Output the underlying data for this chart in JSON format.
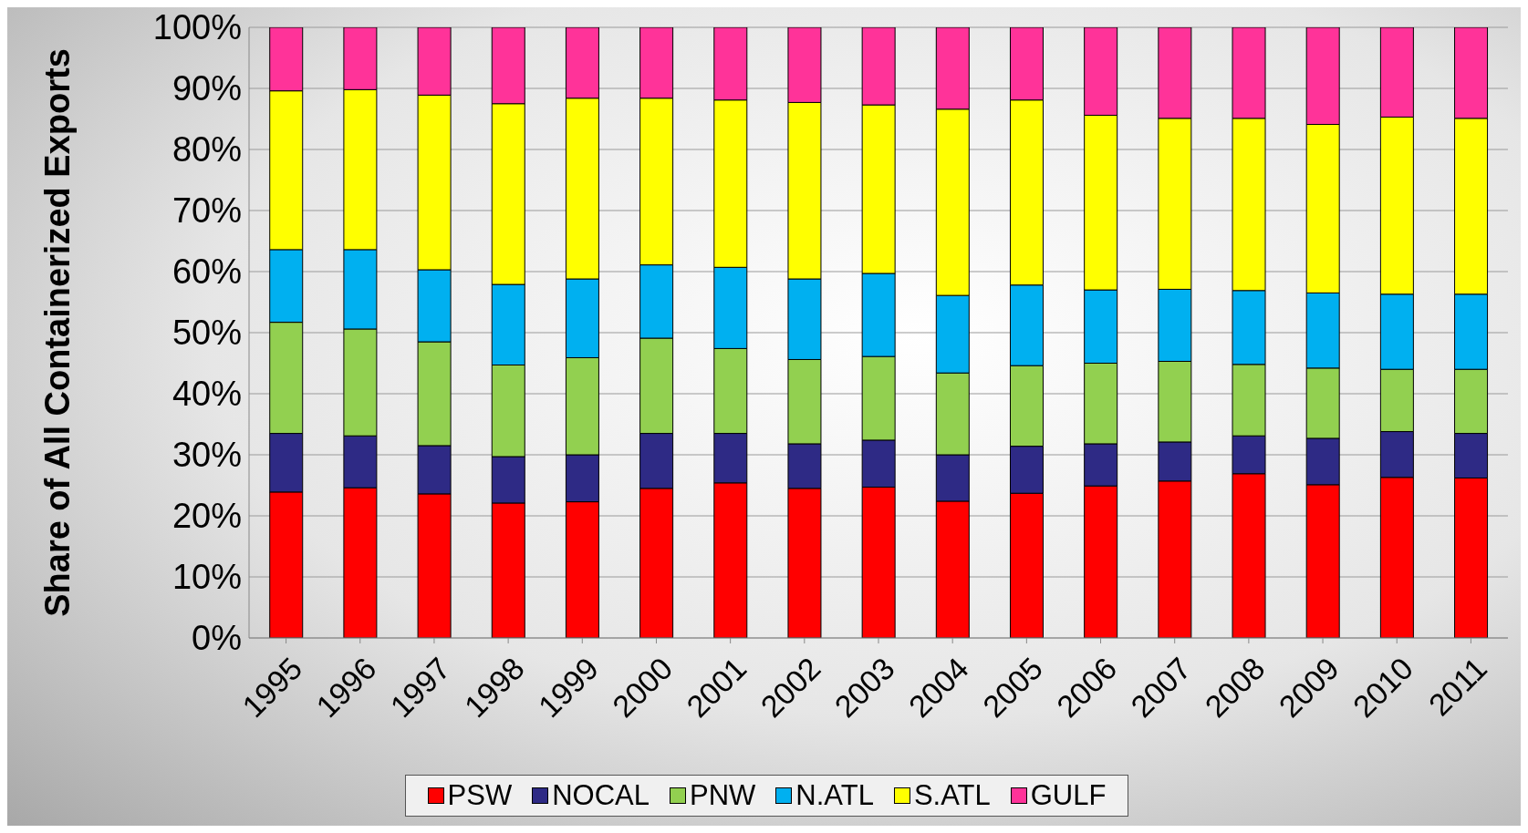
{
  "chart_data": {
    "type": "bar",
    "stacked": true,
    "ylabel": "Share of All Containerized Exports",
    "categories": [
      "1995",
      "1996",
      "1997",
      "1998",
      "1999",
      "2000",
      "2001",
      "2002",
      "2003",
      "2004",
      "2005",
      "2006",
      "2007",
      "2008",
      "2009",
      "2010",
      "2011"
    ],
    "series": [
      {
        "name": "PSW",
        "color": "#ff0000",
        "values": [
          23.9,
          24.6,
          23.6,
          22.1,
          22.3,
          24.5,
          25.4,
          24.5,
          24.7,
          22.4,
          23.7,
          24.9,
          25.7,
          26.9,
          25.1,
          26.3,
          26.2
        ]
      },
      {
        "name": "NOCAL",
        "color": "#2e2a85",
        "values": [
          9.6,
          8.5,
          7.9,
          7.6,
          7.7,
          9.0,
          8.1,
          7.3,
          7.7,
          7.6,
          7.7,
          6.9,
          6.4,
          6.2,
          7.6,
          7.5,
          7.3
        ]
      },
      {
        "name": "PNW",
        "color": "#92d050",
        "values": [
          18.2,
          17.5,
          17.0,
          15.0,
          15.9,
          15.6,
          13.9,
          13.8,
          13.7,
          13.4,
          13.2,
          13.2,
          13.2,
          11.7,
          11.5,
          10.2,
          10.5
        ]
      },
      {
        "name": "N.ATL",
        "color": "#00b0f0",
        "values": [
          11.9,
          13.0,
          11.8,
          13.2,
          12.9,
          12.0,
          13.3,
          13.2,
          13.6,
          12.7,
          13.2,
          12.0,
          11.8,
          12.1,
          12.3,
          12.3,
          12.3
        ]
      },
      {
        "name": "S.ATL",
        "color": "#ffff00",
        "values": [
          26.0,
          26.2,
          28.6,
          29.6,
          29.6,
          27.3,
          27.4,
          28.9,
          27.6,
          30.5,
          30.3,
          28.6,
          28.0,
          28.2,
          27.6,
          29.0,
          28.8
        ]
      },
      {
        "name": "GULF",
        "color": "#ff3399",
        "values": [
          10.4,
          10.2,
          11.1,
          12.5,
          11.6,
          11.6,
          11.9,
          12.3,
          12.7,
          13.4,
          11.9,
          14.4,
          14.9,
          14.9,
          15.9,
          14.7,
          14.9
        ]
      }
    ],
    "ylim": [
      0,
      100
    ],
    "yticks": [
      {
        "value": 0,
        "label": "0%"
      },
      {
        "value": 10,
        "label": "10%"
      },
      {
        "value": 20,
        "label": "20%"
      },
      {
        "value": 30,
        "label": "30%"
      },
      {
        "value": 40,
        "label": "40%"
      },
      {
        "value": 50,
        "label": "50%"
      },
      {
        "value": 60,
        "label": "60%"
      },
      {
        "value": 70,
        "label": "70%"
      },
      {
        "value": 80,
        "label": "80%"
      },
      {
        "value": 90,
        "label": "90%"
      },
      {
        "value": 100,
        "label": "100%"
      }
    ],
    "grid": "y",
    "legend": "bottom"
  }
}
